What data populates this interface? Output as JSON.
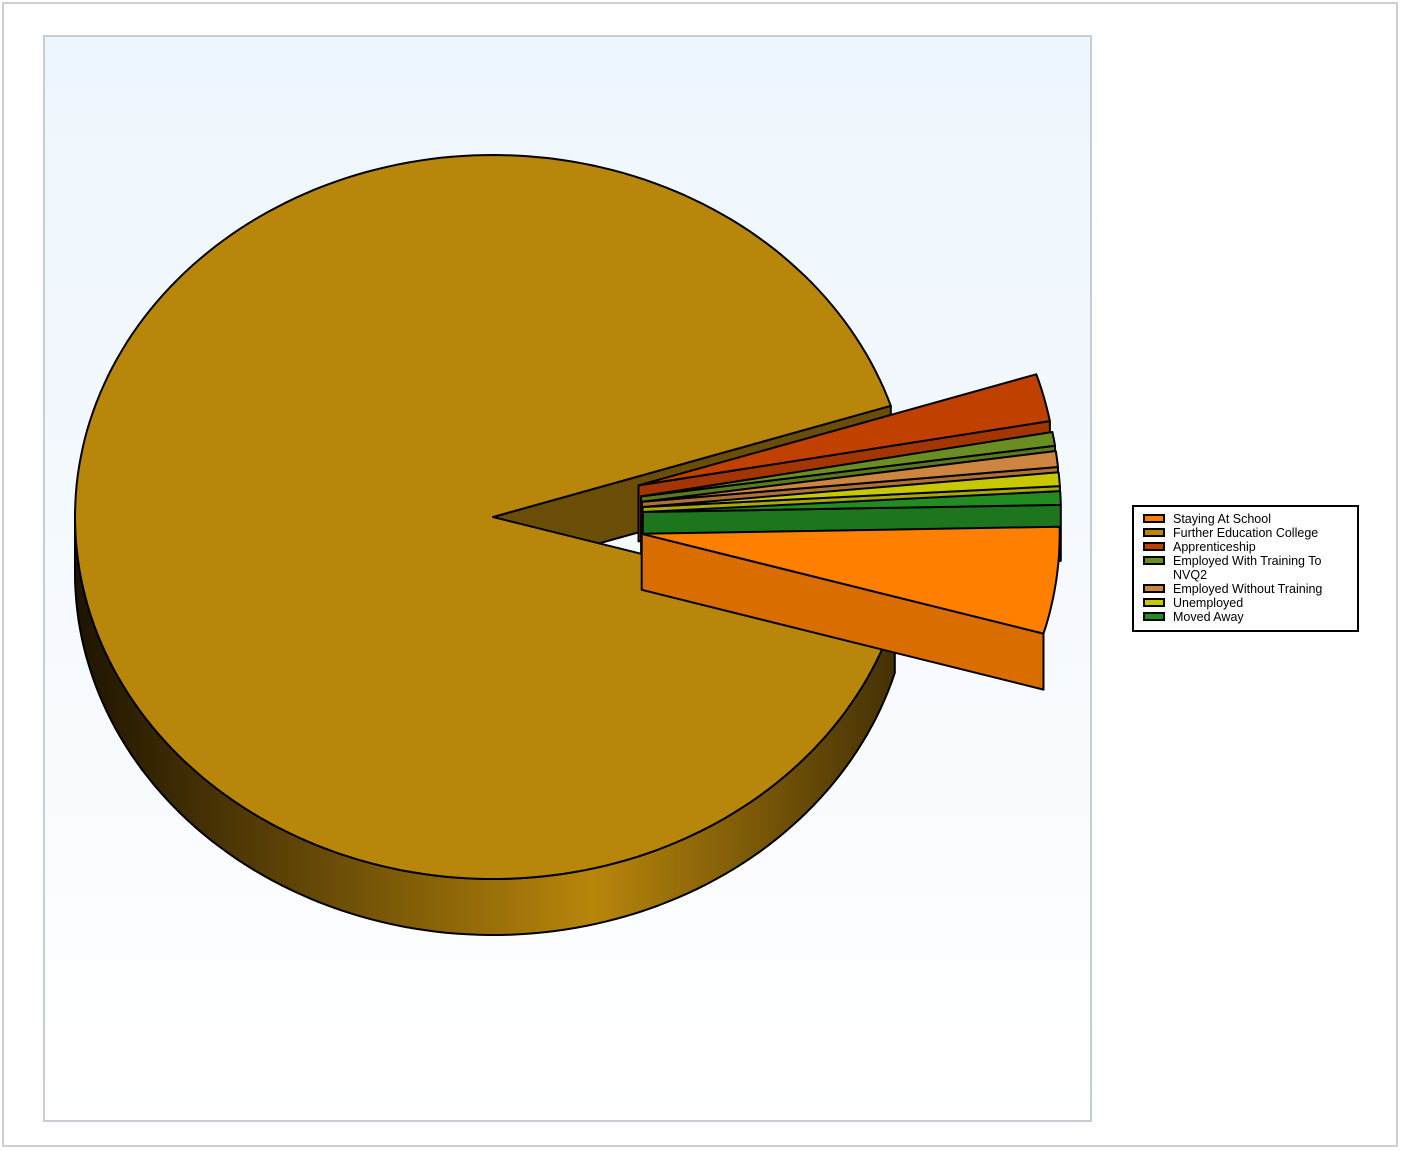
{
  "chart_data": {
    "type": "pie",
    "style": "3d-exploded",
    "title": "",
    "categories": [
      "Staying At School",
      "Further Education College",
      "Apprenticeship",
      "Employed With Training To NVQ2",
      "Employed Without Training",
      "Unemployed",
      "Moved Away"
    ],
    "values": [
      4.7,
      89.5,
      2.1,
      0.6,
      0.7,
      0.6,
      0.6
    ],
    "slice_order": [
      "Further Education College",
      "Apprenticeship",
      "Employed With Training To NVQ2",
      "Employed Without Training",
      "Unemployed",
      "Moved Away",
      "Staying At School"
    ],
    "exploded": [
      "Staying At School",
      "Apprenticeship",
      "Employed With Training To NVQ2",
      "Employed Without Training",
      "Unemployed",
      "Moved Away"
    ],
    "colors": [
      "#ff8000",
      "#b8860b",
      "#c04000",
      "#6b8e23",
      "#cd8540",
      "#c8c800",
      "#228b22"
    ],
    "legend_position": "right",
    "legend": [
      "Staying At School",
      "Further Education College",
      "Apprenticeship",
      "Employed With Training To NVQ2",
      "Employed Without Training",
      "Unemployed",
      "Moved Away"
    ]
  }
}
